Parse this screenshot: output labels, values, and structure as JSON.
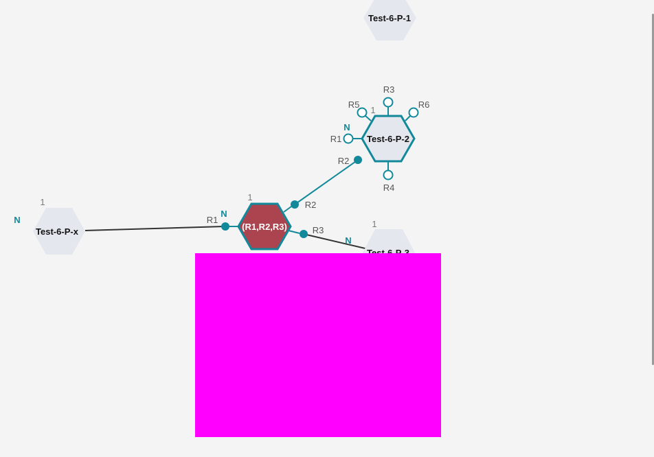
{
  "nodes": {
    "p1": {
      "label": "Test-6-P-1"
    },
    "p2": {
      "label": "Test-6-P-2",
      "count": "1",
      "n_label": "N"
    },
    "px": {
      "label": "Test-6-P-x",
      "count": "1",
      "n_label": "N"
    },
    "center": {
      "label": "(R1,R2,R3)",
      "count": "1",
      "n_label": "N"
    },
    "p3": {
      "label": "Test-6-P-3",
      "count": "1",
      "n_label": "N"
    }
  },
  "ports": {
    "p2": {
      "r1": "R1",
      "r2": "R2",
      "r3": "R3",
      "r4": "R4",
      "r5": "R5",
      "r6": "R6"
    },
    "center": {
      "r1": "R1",
      "r2": "R2",
      "r3": "R3"
    }
  },
  "colors": {
    "teal": "#11899a",
    "hex_fill": "#e4e8ee",
    "center_fill": "#ab444f",
    "edge": "#333333",
    "overlay": "#ff00ff"
  }
}
